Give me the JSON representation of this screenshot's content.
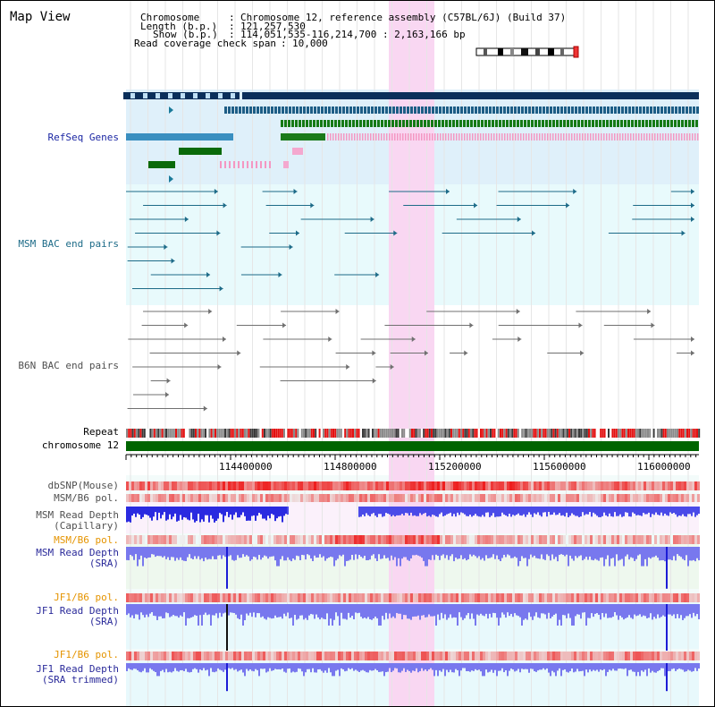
{
  "title": "Map View",
  "info": {
    "chromosome_key": "Chromosome",
    "chromosome_val": "Chromosome 12, reference assembly (C57BL/6J) (Build 37)",
    "length_key": "Length (b.p.)",
    "length_val": "121,257,530",
    "show_key": "Show (b.p.)",
    "show_val": "114,051,535-116,214,700 : 2,163,166 bp",
    "coverage_key": "Read coverage check span",
    "coverage_val": "10,000"
  },
  "tracks": {
    "refseq": "RefSeq Genes",
    "msm_bac": "MSM BAC end pairs",
    "b6n_bac": "B6N BAC end pairs",
    "repeat": "Repeat",
    "chromosome": "chromosome 12",
    "dbsnp": "dbSNP(Mouse)",
    "msm_b6_pol_1": "MSM/B6 pol.",
    "msm_depth_cap_1": "MSM Read Depth",
    "msm_depth_cap_2": "(Capillary)",
    "msm_b6_pol_2": "MSM/B6 pol.",
    "msm_depth_sra_1": "MSM Read Depth",
    "msm_depth_sra_2": "(SRA)",
    "jf1_b6_pol_1": "JF1/B6 pol.",
    "jf1_depth_sra_1": "JF1 Read Depth",
    "jf1_depth_sra_2": "(SRA)",
    "jf1_b6_pol_2": "JF1/B6 pol.",
    "jf1_depth_trim_1": "JF1 Read Depth",
    "jf1_depth_trim_2": "(SRA trimmed)"
  },
  "axis": {
    "ticks": [
      "114400000",
      "114800000",
      "115200000",
      "115600000",
      "116000000"
    ]
  },
  "colors": {
    "refseq_bg": "#dff0fa",
    "msm_bg": "#e8fafc",
    "highlight": "#f9d7f2",
    "chromosome_bar": "#006400",
    "depth_blue": "#4040e8",
    "pol_red": "#ee2020"
  }
}
